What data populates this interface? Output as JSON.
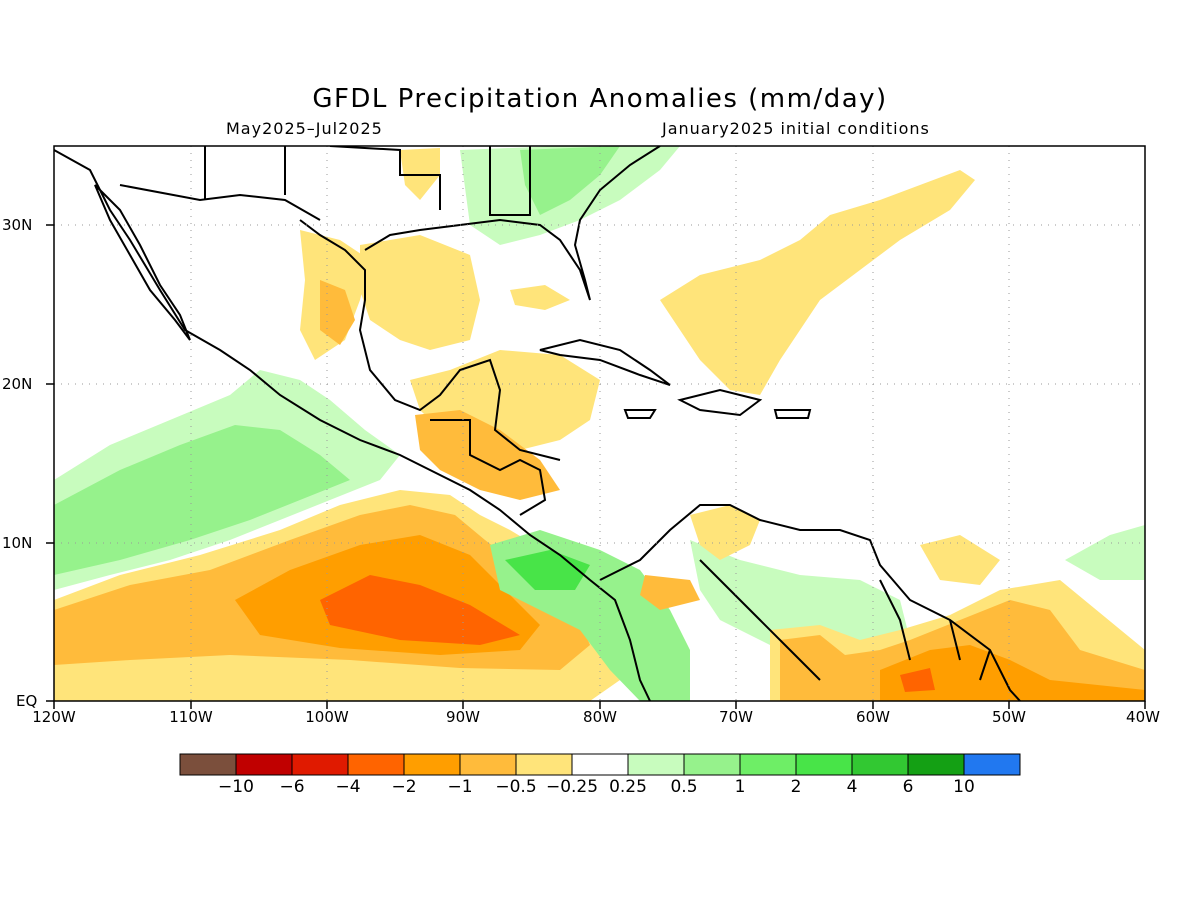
{
  "title": "GFDL Precipitation Anomalies (mm/day)",
  "subtitle_left": "May2025–Jul2025",
  "subtitle_right": "January2025 initial conditions",
  "lat_labels": [
    "30N",
    "20N",
    "10N",
    "EQ"
  ],
  "lon_labels": [
    "120W",
    "110W",
    "100W",
    "90W",
    "80W",
    "70W",
    "60W",
    "50W",
    "40W"
  ],
  "colorbar": {
    "colors": [
      "#7b4f3c",
      "#c00000",
      "#e01a00",
      "#ff6400",
      "#ff9e00",
      "#ffbb3b",
      "#ffe47a",
      "#ffffff",
      "#c8fcbe",
      "#96f28c",
      "#6eee66",
      "#48e448",
      "#32c832",
      "#14a014",
      "#2178f0"
    ],
    "labels": [
      "−10",
      "−6",
      "−4",
      "−2",
      "−1",
      "−0.5",
      "−0.25",
      "0.25",
      "0.5",
      "1",
      "2",
      "4",
      "6",
      "10"
    ]
  },
  "map": {
    "lon_range": [
      -120,
      -40
    ],
    "lat_range": [
      0,
      35
    ],
    "grid_lons": [
      -110,
      -100,
      -90,
      -80,
      -70,
      -60,
      -50
    ],
    "grid_lats": [
      10,
      20,
      30
    ]
  }
}
